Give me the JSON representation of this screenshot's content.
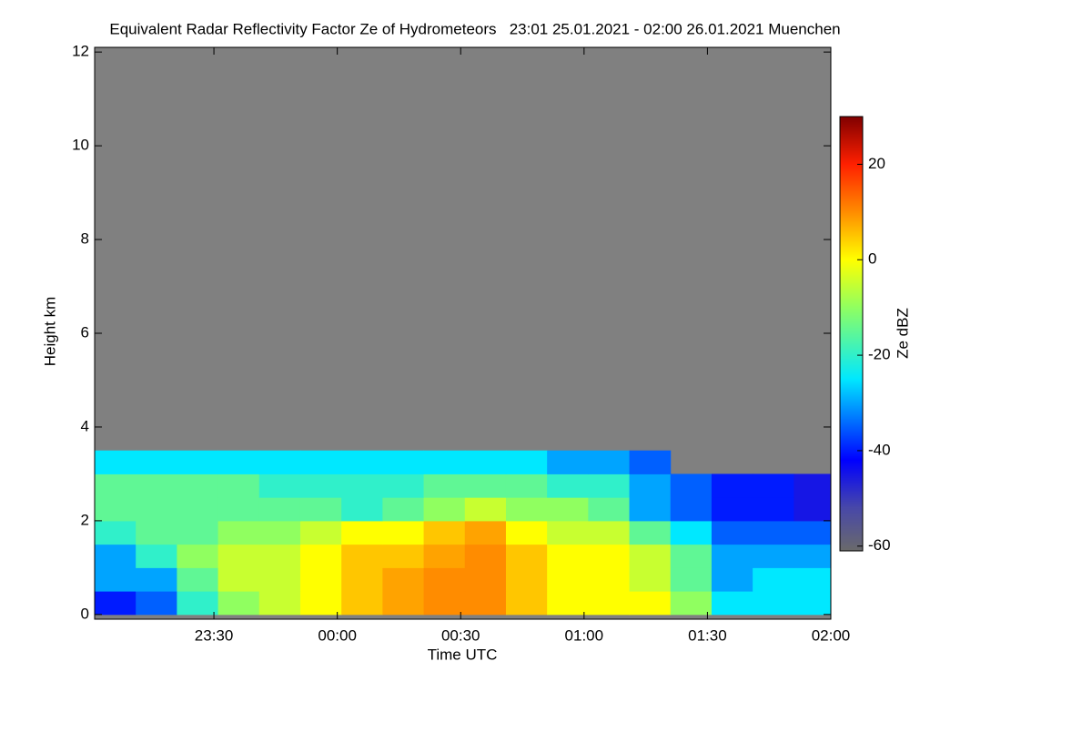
{
  "chart_data": {
    "type": "heatmap",
    "title": "Equivalent Radar Reflectivity Factor Ze of Hydrometeors   23:01 25.01.2021 - 02:00 26.01.2021 Muenchen",
    "x_label": "Time UTC",
    "y_label": "Height km",
    "background_color": "#808080",
    "xlim": [
      1,
      180
    ],
    "xticks": [
      {
        "value": 30,
        "label": "23:30"
      },
      {
        "value": 60,
        "label": "00:00"
      },
      {
        "value": 90,
        "label": "00:30"
      },
      {
        "value": 120,
        "label": "01:00"
      },
      {
        "value": 150,
        "label": "01:30"
      },
      {
        "value": 180,
        "label": "02:00"
      }
    ],
    "ylim": [
      -0.1,
      12.1
    ],
    "yticks": [
      0,
      2,
      4,
      6,
      8,
      10,
      12
    ],
    "xbins": [
      1,
      11,
      21,
      31,
      41,
      51,
      61,
      71,
      81,
      91,
      101,
      111,
      121,
      131,
      141,
      151,
      161,
      171,
      180
    ],
    "ybins": [
      0,
      0.5,
      1,
      1.5,
      2,
      2.5,
      3,
      3.5
    ],
    "z": [
      [
        -40,
        -35,
        -20,
        -10,
        -5,
        0,
        5,
        8,
        10,
        10,
        5,
        0,
        0,
        0,
        -10,
        -25,
        -25,
        -25
      ],
      [
        -30,
        -30,
        -15,
        -5,
        -5,
        0,
        5,
        8,
        10,
        10,
        5,
        0,
        0,
        -5,
        -15,
        -30,
        -25,
        -25
      ],
      [
        -30,
        -20,
        -10,
        -5,
        -5,
        0,
        5,
        5,
        8,
        10,
        5,
        0,
        0,
        -5,
        -15,
        -30,
        -30,
        -30
      ],
      [
        -20,
        -15,
        -15,
        -10,
        -10,
        -5,
        0,
        0,
        5,
        8,
        0,
        -5,
        -5,
        -15,
        -25,
        -35,
        -35,
        -35
      ],
      [
        -15,
        -15,
        -15,
        -15,
        -15,
        -15,
        -20,
        -15,
        -10,
        -5,
        -10,
        -10,
        -15,
        -30,
        -35,
        -40,
        -40,
        -45
      ],
      [
        -15,
        -15,
        -15,
        -15,
        -20,
        -20,
        -20,
        -20,
        -15,
        -15,
        -15,
        -20,
        -20,
        -30,
        -35,
        -40,
        -40,
        -45
      ],
      [
        -25,
        -25,
        -25,
        -25,
        -25,
        -25,
        -25,
        -25,
        -25,
        -25,
        -25,
        -30,
        -30,
        -35,
        null,
        null,
        null,
        null
      ]
    ],
    "colorbar": {
      "label": "Ze dBZ",
      "zlim": [
        -61,
        30
      ],
      "ticks": [
        -60,
        -40,
        -20,
        0,
        20
      ]
    },
    "colormap": [
      [
        -61,
        "#6a6a6a"
      ],
      [
        -52,
        "#4848a8"
      ],
      [
        -42,
        "#0000ff"
      ],
      [
        -25,
        "#00e8ff"
      ],
      [
        -10,
        "#90ff60"
      ],
      [
        0,
        "#ffff00"
      ],
      [
        10,
        "#ff8c00"
      ],
      [
        20,
        "#ff2000"
      ],
      [
        30,
        "#800000"
      ]
    ]
  }
}
